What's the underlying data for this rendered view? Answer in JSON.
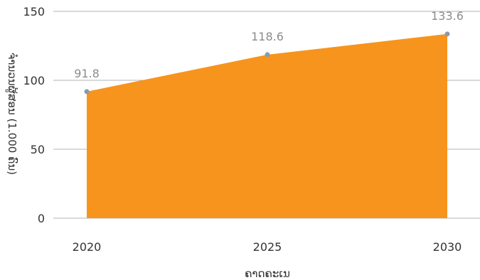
{
  "chart_data": {
    "type": "area",
    "xlabel": "ຄາດຄະເນ",
    "ylabel": "ຈຳນວນຜູ້ສອນ (1.000 ຄົນ)",
    "categories": [
      "2020",
      "2025",
      "2030"
    ],
    "series": [
      {
        "values": [
          91.8,
          118.6,
          133.6
        ]
      }
    ],
    "data_labels": [
      "91.8",
      "118.6",
      "133.6"
    ],
    "y_ticks": [
      "0",
      "50",
      "100",
      "150"
    ],
    "ylim": [
      0,
      150
    ],
    "grid": true,
    "colors": {
      "fill": "#f7941d",
      "marker": "#8c9aab",
      "grid": "#b3b3b3"
    }
  }
}
